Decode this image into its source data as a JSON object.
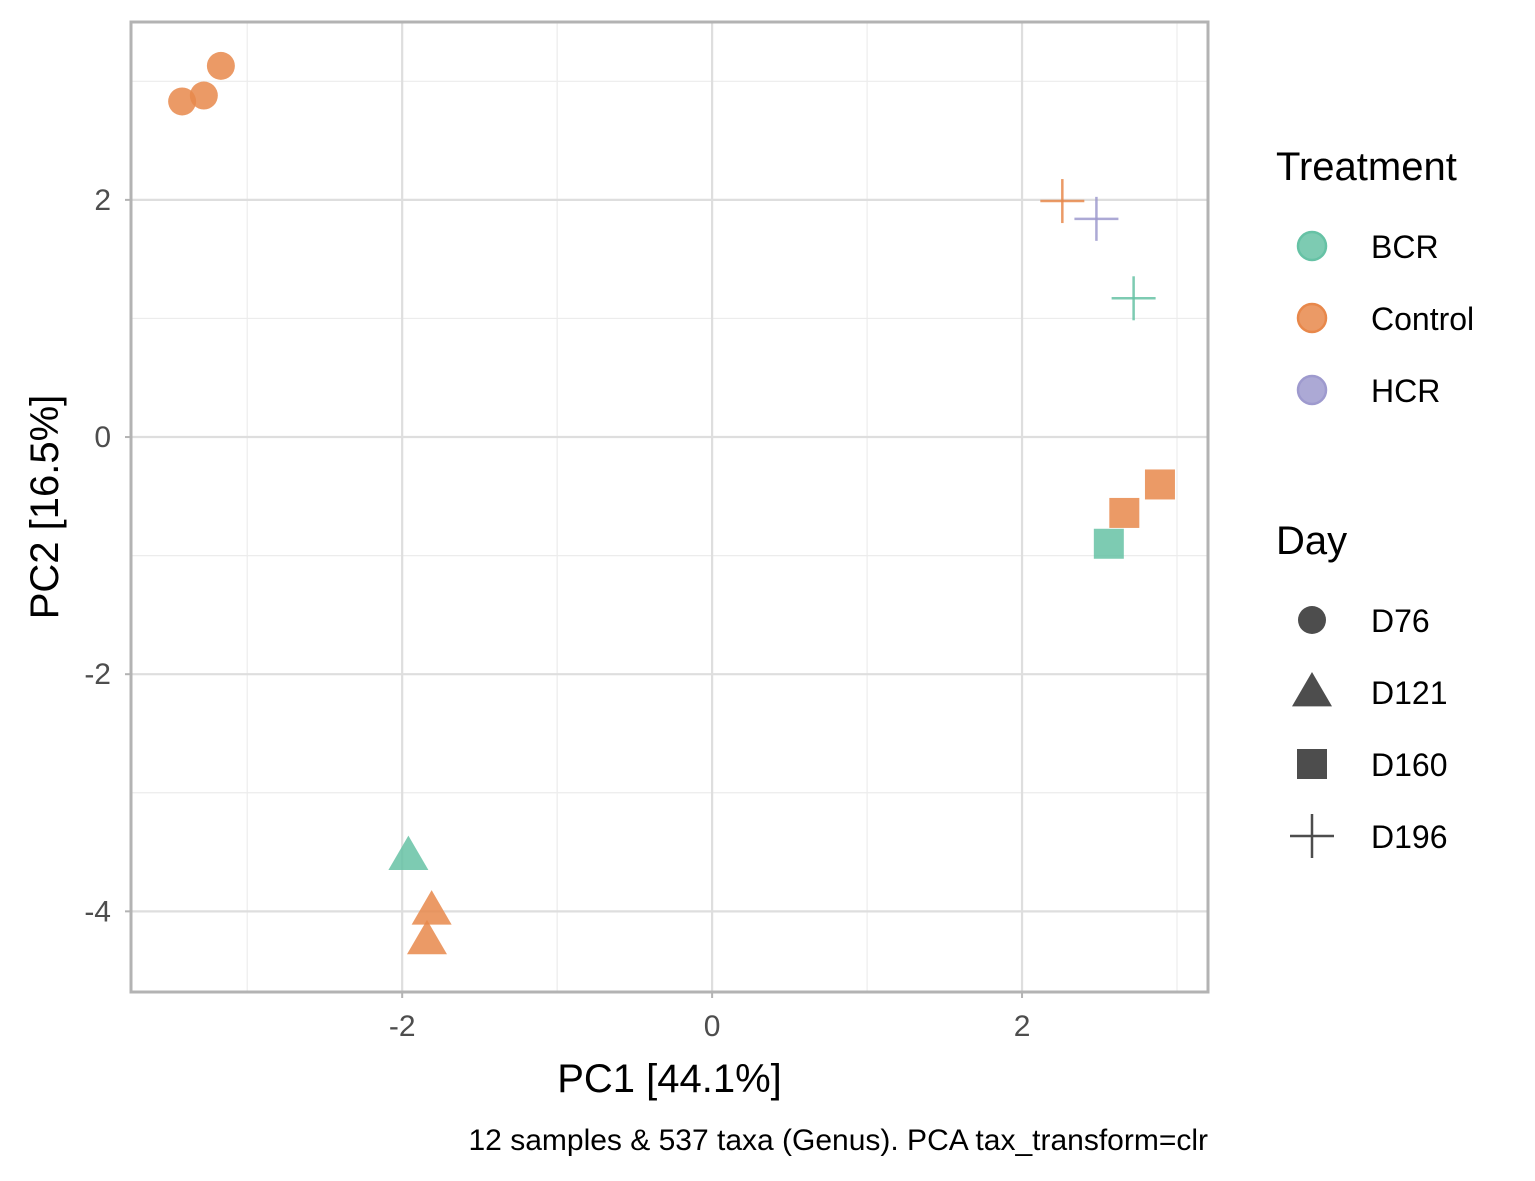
{
  "chart_data": {
    "type": "scatter",
    "xlabel": "PC1 [44.1%]",
    "ylabel": "PC2 [16.5%]",
    "caption": "12 samples & 537 taxa (Genus). PCA tax_transform=clr",
    "xlim": [
      -3.75,
      3.2
    ],
    "ylim": [
      -4.68,
      3.5
    ],
    "x_ticks": [
      -2,
      0,
      2
    ],
    "x_tick_labels": [
      "-2",
      "0",
      "2"
    ],
    "y_ticks": [
      -4,
      -2,
      0,
      2
    ],
    "y_tick_labels": [
      "-4",
      "-2",
      "0",
      "2"
    ],
    "x_minor_ticks": [
      -3,
      -1,
      1,
      3
    ],
    "y_minor_ticks": [
      -3,
      -1,
      1,
      3
    ],
    "grid": true,
    "legend_placement": "right",
    "color_legend": {
      "title": "Treatment",
      "entries": [
        {
          "label": "BCR",
          "color": "#66c2a5"
        },
        {
          "label": "Control",
          "color": "#e8884b"
        },
        {
          "label": "HCR",
          "color": "#9e9ace"
        }
      ]
    },
    "shape_legend": {
      "title": "Day",
      "entries": [
        {
          "label": "D76",
          "shape": "circle"
        },
        {
          "label": "D121",
          "shape": "triangle"
        },
        {
          "label": "D160",
          "shape": "square"
        },
        {
          "label": "D196",
          "shape": "plus"
        }
      ]
    },
    "points": [
      {
        "x": -3.42,
        "y": 2.83,
        "treatment": "Control",
        "day": "D76"
      },
      {
        "x": -3.28,
        "y": 2.88,
        "treatment": "Control",
        "day": "D76"
      },
      {
        "x": -3.17,
        "y": 3.13,
        "treatment": "Control",
        "day": "D76"
      },
      {
        "x": 2.26,
        "y": 1.99,
        "treatment": "Control",
        "day": "D196"
      },
      {
        "x": 2.48,
        "y": 1.84,
        "treatment": "HCR",
        "day": "D196"
      },
      {
        "x": 2.72,
        "y": 1.17,
        "treatment": "BCR",
        "day": "D196"
      },
      {
        "x": 2.89,
        "y": -0.4,
        "treatment": "Control",
        "day": "D160"
      },
      {
        "x": 2.66,
        "y": -0.64,
        "treatment": "Control",
        "day": "D160"
      },
      {
        "x": 2.56,
        "y": -0.9,
        "treatment": "BCR",
        "day": "D160"
      },
      {
        "x": -1.96,
        "y": -3.53,
        "treatment": "BCR",
        "day": "D121"
      },
      {
        "x": -1.81,
        "y": -3.99,
        "treatment": "Control",
        "day": "D121"
      },
      {
        "x": -1.84,
        "y": -4.24,
        "treatment": "Control",
        "day": "D121"
      }
    ]
  }
}
